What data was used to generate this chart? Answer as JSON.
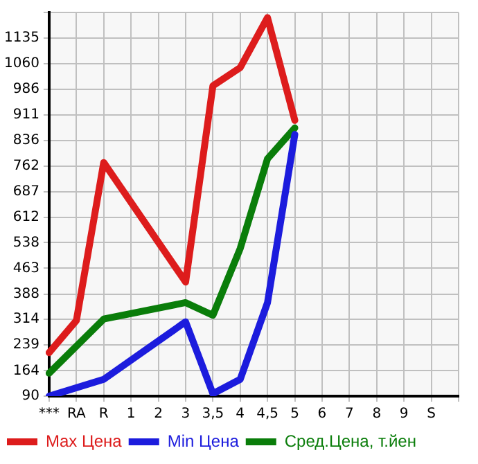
{
  "chart_data": {
    "type": "line",
    "categories": [
      "***",
      "RA",
      "R",
      "1",
      "2",
      "3",
      "3,5",
      "4",
      "4,5",
      "5",
      "6",
      "7",
      "8",
      "9",
      "S",
      null
    ],
    "series": [
      {
        "name": "Max Цена",
        "color": "#dd1c1c",
        "values": [
          217,
          311,
          772,
          null,
          null,
          423,
          996,
          1049,
          1195,
          895,
          null,
          null,
          null,
          null,
          null,
          null
        ]
      },
      {
        "name": "Min Цена",
        "color": "#1c1cdd",
        "values": [
          90,
          null,
          139,
          null,
          null,
          307,
          97,
          139,
          363,
          854,
          null,
          null,
          null,
          null,
          null,
          null
        ]
      },
      {
        "name": "Сред.Цена, т.йен",
        "color": "#0a7d0a",
        "values": [
          157,
          null,
          315,
          null,
          null,
          363,
          326,
          521,
          783,
          873,
          null,
          null,
          null,
          null,
          null,
          null
        ]
      }
    ],
    "ylim": [
      90,
      1210
    ],
    "yticks": [
      90,
      164,
      239,
      314,
      388,
      463,
      538,
      612,
      687,
      762,
      836,
      911,
      986,
      1060,
      1135,
      {
        "value": 1210,
        "label": null
      }
    ],
    "grid": true,
    "legend": "bottom",
    "marker": "none",
    "line_style": "solid"
  }
}
